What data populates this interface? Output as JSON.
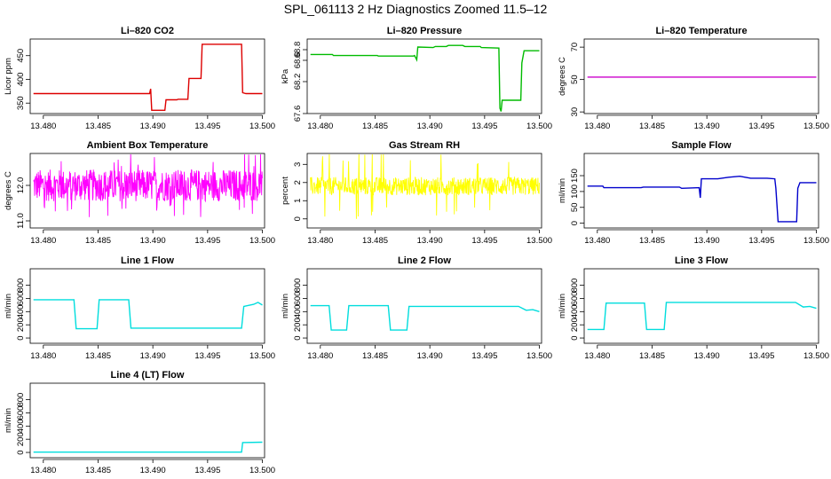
{
  "title": "SPL_061113  2 Hz Diagnostics Zoomed 11.5–12",
  "chart_data": [
    {
      "type": "line",
      "title": "Li–820 CO2",
      "ylabel": "Licor ppm",
      "color": "#dd0000",
      "xlim": [
        13.4788,
        13.5002
      ],
      "ylim": [
        328,
        485
      ],
      "xticks": [
        "13.480",
        "13.485",
        "13.490",
        "13.495",
        "13.500"
      ],
      "yticks": [
        "350",
        "400",
        "450"
      ],
      "series": [
        {
          "x": [
            13.4791,
            13.4897,
            13.4898,
            13.4899,
            13.4911,
            13.4912,
            13.4922,
            13.4923,
            13.4932,
            13.4933,
            13.4944,
            13.4945,
            13.4981,
            13.4982,
            13.4985,
            13.5
          ],
          "y": [
            370,
            370,
            380,
            335,
            335,
            357,
            357,
            358,
            358,
            402,
            402,
            474,
            474,
            372,
            370,
            370
          ]
        }
      ]
    },
    {
      "type": "line",
      "title": "Li–820 Pressure",
      "ylabel": "kPa",
      "color": "#00bb00",
      "xlim": [
        13.4788,
        13.5002
      ],
      "ylim": [
        67.6,
        69.0
      ],
      "xticks": [
        "13.480",
        "13.485",
        "13.490",
        "13.495",
        "13.500"
      ],
      "yticks": [
        "67.6",
        "68.2",
        "68.6",
        "68.8"
      ],
      "series": [
        {
          "x": [
            13.4791,
            13.4811,
            13.4812,
            13.4852,
            13.4853,
            13.4885,
            13.4886,
            13.4888,
            13.4889,
            13.4903,
            13.4905,
            13.4915,
            13.4917,
            13.493,
            13.4932,
            13.4946,
            13.4947,
            13.4963,
            13.4964,
            13.4965,
            13.4966,
            13.4983,
            13.4984,
            13.4986,
            13.4987,
            13.5
          ],
          "y": [
            68.71,
            68.71,
            68.69,
            68.69,
            68.68,
            68.68,
            68.69,
            68.61,
            68.85,
            68.84,
            68.86,
            68.86,
            68.88,
            68.88,
            68.86,
            68.86,
            68.84,
            68.83,
            67.7,
            67.64,
            67.85,
            67.85,
            68.55,
            68.78,
            68.78,
            68.78
          ]
        }
      ]
    },
    {
      "type": "line",
      "title": "Li–820 Temperature",
      "ylabel": "degrees C",
      "color": "#cc00cc",
      "xlim": [
        13.4788,
        13.5002
      ],
      "ylim": [
        29,
        75
      ],
      "xticks": [
        "13.480",
        "13.485",
        "13.490",
        "13.495",
        "13.500"
      ],
      "yticks": [
        "30",
        "50",
        "70"
      ],
      "series": [
        {
          "x": [
            13.4791,
            13.5
          ],
          "y": [
            51.5,
            51.5
          ]
        }
      ]
    },
    {
      "type": "line",
      "title": "Ambient Box Temperature",
      "ylabel": "degrees C",
      "color": "#ff00ff",
      "xlim": [
        13.4788,
        13.5002
      ],
      "ylim": [
        10.8,
        12.9
      ],
      "xticks": [
        "13.480",
        "13.485",
        "13.490",
        "13.495",
        "13.500"
      ],
      "yticks": [
        "11.0",
        "12.0"
      ],
      "noise": {
        "base": 12.0,
        "amp": 0.45,
        "spike": 0.9,
        "n": 620
      },
      "series": [
        {
          "x": [
            13.4791,
            13.5
          ],
          "y": [
            12.0,
            12.0
          ]
        }
      ]
    },
    {
      "type": "line",
      "title": "Gas Stream RH",
      "ylabel": "percent",
      "color": "#ffff00",
      "xlim": [
        13.4788,
        13.5002
      ],
      "ylim": [
        -0.5,
        3.6
      ],
      "xticks": [
        "13.480",
        "13.485",
        "13.490",
        "13.495",
        "13.500"
      ],
      "yticks": [
        "0",
        "1",
        "2",
        "3"
      ],
      "noise": {
        "base": 1.8,
        "amp": 0.5,
        "spike": 1.9,
        "n": 620
      },
      "series": [
        {
          "x": [
            13.4791,
            13.5
          ],
          "y": [
            1.8,
            1.8
          ]
        }
      ]
    },
    {
      "type": "line",
      "title": "Sample Flow",
      "ylabel": "ml/min",
      "color": "#0000cc",
      "xlim": [
        13.4788,
        13.5002
      ],
      "ylim": [
        -15,
        220
      ],
      "xticks": [
        "13.480",
        "13.485",
        "13.490",
        "13.495",
        "13.500"
      ],
      "yticks": [
        "0",
        "50",
        "100",
        "150"
      ],
      "series": [
        {
          "x": [
            13.4791,
            13.4805,
            13.4806,
            13.484,
            13.4842,
            13.4875,
            13.4877,
            13.4893,
            13.4894,
            13.4895,
            13.491,
            13.492,
            13.493,
            13.494,
            13.4955,
            13.4962,
            13.4963,
            13.4965,
            13.4982,
            13.4983,
            13.4985,
            13.5
          ],
          "y": [
            117,
            117,
            112,
            112,
            114,
            114,
            110,
            112,
            80,
            140,
            140,
            145,
            148,
            142,
            142,
            140,
            110,
            5,
            5,
            110,
            128,
            128
          ]
        }
      ]
    },
    {
      "type": "line",
      "title": "Line 1 Flow",
      "ylabel": "ml/min",
      "color": "#00dddd",
      "xlim": [
        13.4788,
        13.5002
      ],
      "ylim": [
        -80,
        1050
      ],
      "xticks": [
        "13.480",
        "13.485",
        "13.490",
        "13.495",
        "13.500"
      ],
      "yticks": [
        "0",
        "200",
        "400",
        "600",
        "800"
      ],
      "series": [
        {
          "x": [
            13.4791,
            13.4828,
            13.483,
            13.4849,
            13.4851,
            13.4878,
            13.488,
            13.4981,
            13.4983,
            13.4992,
            13.4996,
            13.5
          ],
          "y": [
            580,
            580,
            140,
            140,
            580,
            580,
            150,
            150,
            480,
            510,
            540,
            500
          ]
        }
      ]
    },
    {
      "type": "line",
      "title": "Line 2 Flow",
      "ylabel": "ml/min",
      "color": "#00dddd",
      "xlim": [
        13.4788,
        13.5002
      ],
      "ylim": [
        -80,
        1050
      ],
      "xticks": [
        "13.480",
        "13.485",
        "13.490",
        "13.495",
        "13.500"
      ],
      "yticks": [
        "0",
        "200",
        "400",
        "600",
        "800"
      ],
      "series": [
        {
          "x": [
            13.4791,
            13.4808,
            13.481,
            13.4824,
            13.4826,
            13.4862,
            13.4864,
            13.4879,
            13.4881,
            13.4981,
            13.4988,
            13.4994,
            13.5
          ],
          "y": [
            490,
            490,
            120,
            120,
            490,
            490,
            120,
            120,
            480,
            480,
            420,
            430,
            400
          ]
        }
      ]
    },
    {
      "type": "line",
      "title": "Line 3 Flow",
      "ylabel": "ml/min",
      "color": "#00dddd",
      "xlim": [
        13.4788,
        13.5002
      ],
      "ylim": [
        -80,
        1050
      ],
      "xticks": [
        "13.480",
        "13.485",
        "13.490",
        "13.495",
        "13.500"
      ],
      "yticks": [
        "0",
        "200",
        "400",
        "600",
        "800"
      ],
      "series": [
        {
          "x": [
            13.4791,
            13.4806,
            13.4808,
            13.4843,
            13.4845,
            13.4861,
            13.4863,
            13.4981,
            13.4988,
            13.4994,
            13.5
          ],
          "y": [
            130,
            130,
            530,
            530,
            130,
            130,
            540,
            540,
            470,
            480,
            450
          ]
        }
      ]
    },
    {
      "type": "line",
      "title": "Line 4 (LT) Flow",
      "ylabel": "ml/min",
      "color": "#00dddd",
      "xlim": [
        13.4788,
        13.5002
      ],
      "ylim": [
        -80,
        1050
      ],
      "xticks": [
        "13.480",
        "13.485",
        "13.490",
        "13.495",
        "13.500"
      ],
      "yticks": [
        "0",
        "200",
        "400",
        "600",
        "800"
      ],
      "series": [
        {
          "x": [
            13.4791,
            13.4981,
            13.4982,
            13.5
          ],
          "y": [
            5,
            5,
            150,
            155
          ]
        }
      ]
    }
  ]
}
